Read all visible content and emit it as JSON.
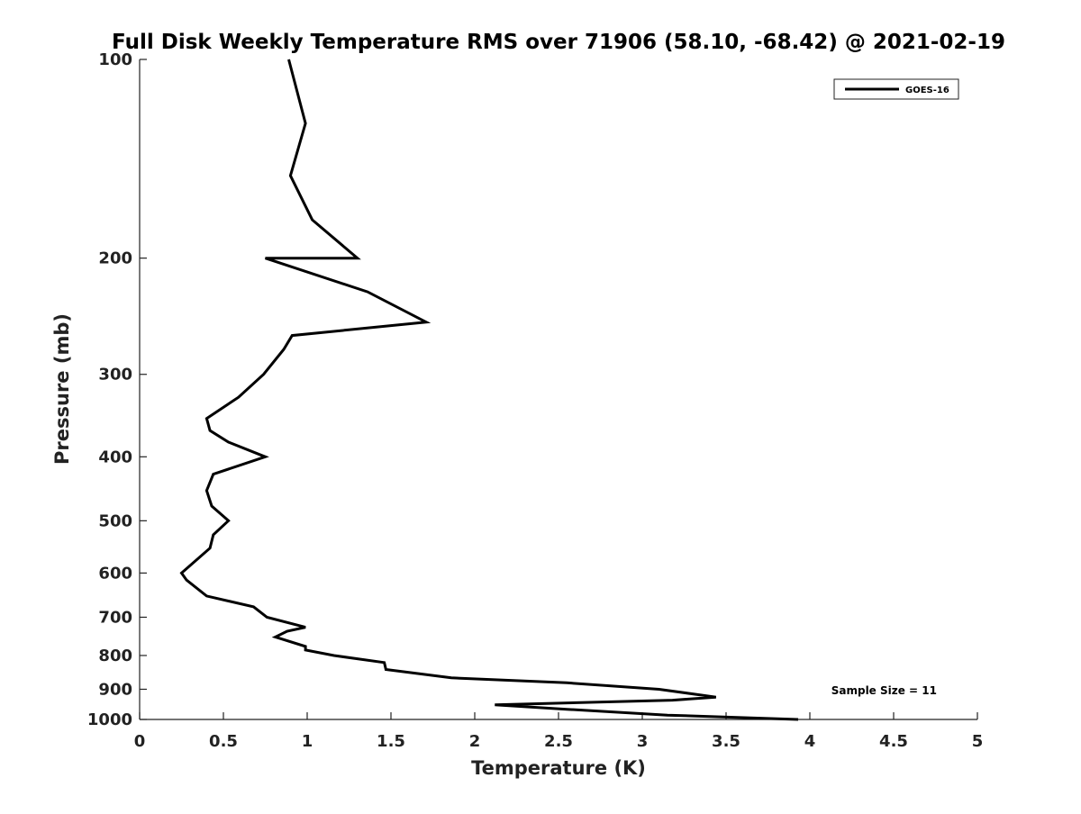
{
  "chart_data": {
    "type": "line",
    "title": "Full Disk Weekly Temperature RMS over 71906 (58.10, -68.42) @ 2021-02-19",
    "xlabel": "Temperature (K)",
    "ylabel": "Pressure (mb)",
    "xlim": [
      0,
      5
    ],
    "ylim": [
      100,
      1000
    ],
    "y_scale": "log",
    "y_inverted": true,
    "x_ticks": [
      "0",
      "0.5",
      "1",
      "1.5",
      "2",
      "2.5",
      "3",
      "3.5",
      "4",
      "4.5",
      "5"
    ],
    "y_ticks": [
      "100",
      "200",
      "300",
      "400",
      "500",
      "600",
      "700",
      "800",
      "900",
      "1000"
    ],
    "grid": false,
    "legend_position": "top-right",
    "line_color": "#000000",
    "annotation": "Sample Size = 11",
    "series": [
      {
        "name": "GOES-16",
        "x": [
          0.89,
          0.99,
          0.9,
          1.03,
          1.3,
          0.75,
          1.36,
          1.71,
          0.91,
          0.86,
          0.74,
          0.59,
          0.4,
          0.42,
          0.53,
          0.75,
          0.44,
          0.4,
          0.43,
          0.53,
          0.44,
          0.42,
          0.25,
          0.28,
          0.4,
          0.68,
          0.76,
          0.99,
          0.88,
          0.81,
          0.99,
          0.99,
          1.16,
          1.46,
          1.47,
          1.86,
          2.55,
          3.1,
          3.44,
          3.18,
          2.12,
          2.55,
          3.15,
          3.93
        ],
        "y": [
          100,
          125,
          150,
          175,
          200,
          200,
          225,
          250,
          262,
          275,
          300,
          325,
          350,
          365,
          380,
          400,
          425,
          450,
          475,
          500,
          525,
          550,
          600,
          615,
          650,
          675,
          700,
          725,
          735,
          750,
          775,
          785,
          800,
          820,
          840,
          865,
          880,
          900,
          925,
          935,
          950,
          965,
          985,
          1000
        ]
      }
    ]
  }
}
